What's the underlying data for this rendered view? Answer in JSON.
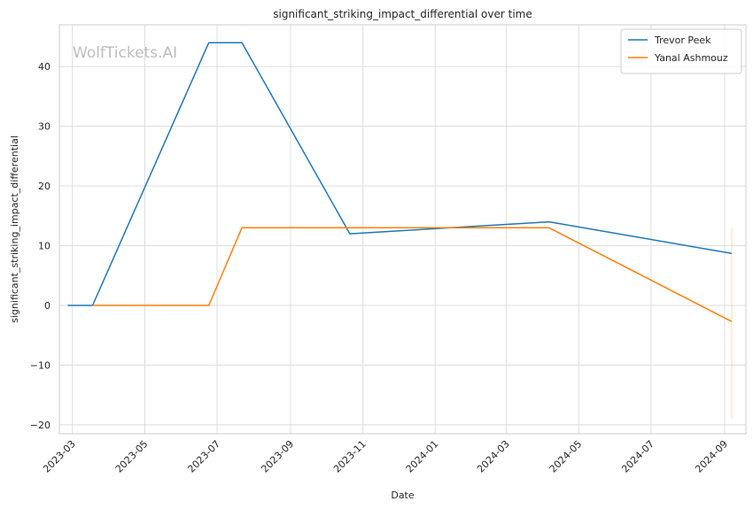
{
  "chart_data": {
    "type": "line",
    "title": "significant_striking_impact_differential over time",
    "xlabel": "Date",
    "ylabel": "significant_striking_impact_differential",
    "watermark": "WolfTickets.AI",
    "x_ticks": [
      "2023-03",
      "2023-05",
      "2023-07",
      "2023-09",
      "2023-11",
      "2024-01",
      "2024-03",
      "2024-05",
      "2024-07",
      "2024-09"
    ],
    "y_ticks": [
      -20,
      -10,
      0,
      10,
      20,
      30,
      40
    ],
    "xlim": [
      "2023-02-18",
      "2024-09-19"
    ],
    "ylim": [
      -21.5,
      47
    ],
    "grid": true,
    "legend_position": "top-right",
    "series": [
      {
        "name": "Trevor Peek",
        "color": "#1f77b4",
        "x": [
          "2023-02-25",
          "2023-03-18",
          "2023-06-24",
          "2023-07-22",
          "2023-10-21",
          "2024-04-06",
          "2024-09-07"
        ],
        "y": [
          0,
          0,
          44,
          44,
          12,
          14,
          8.7
        ]
      },
      {
        "name": "Yanal Ashmouz",
        "color": "#ff7f0e",
        "x": [
          "2023-03-18",
          "2023-06-24",
          "2023-07-22",
          "2024-04-06",
          "2024-09-07"
        ],
        "y": [
          0,
          0,
          13,
          13,
          -2.7
        ]
      }
    ],
    "band": {
      "x": "2024-09-07",
      "y_range": [
        -19,
        13
      ],
      "color": "#ff7f0e"
    }
  }
}
